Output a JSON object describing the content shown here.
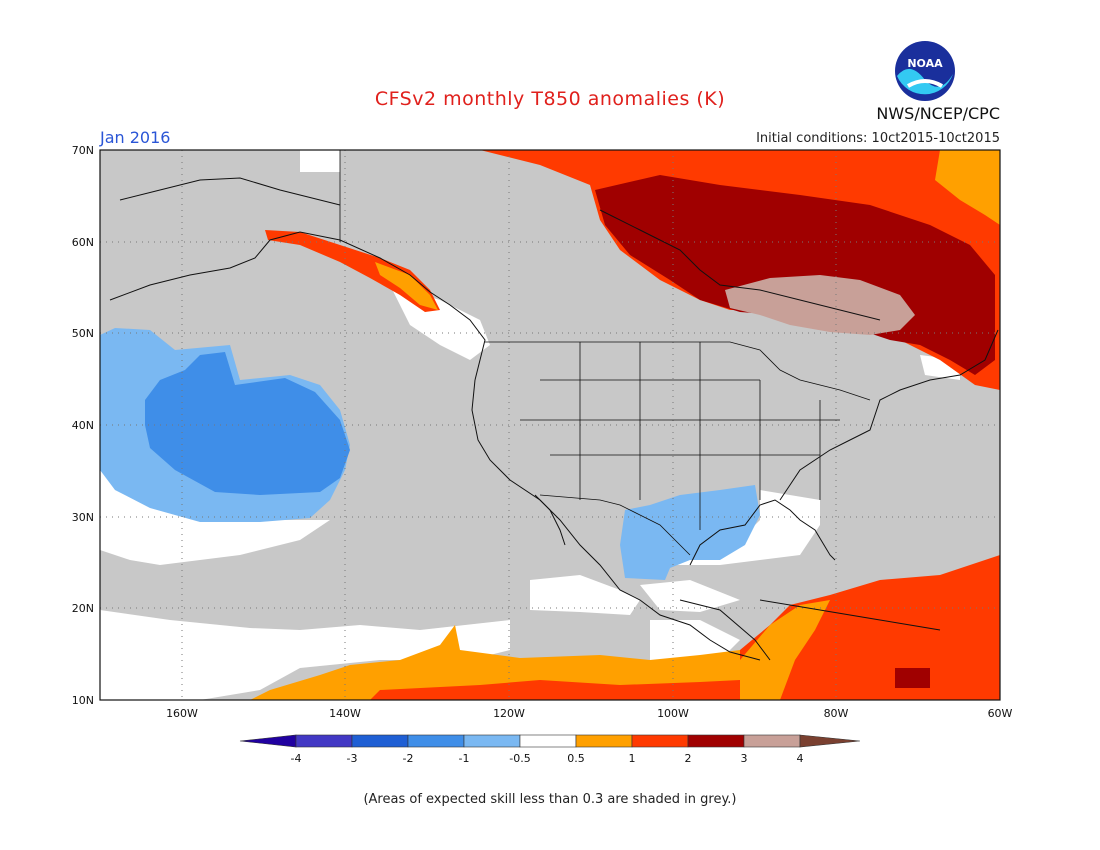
{
  "header": {
    "title": "CFSv2 monthly T850 anomalies (K)",
    "agency": "NWS/NCEP/CPC",
    "logo_text": "NOAA",
    "month": "Jan 2016",
    "initial_conditions": "Initial conditions: 10ct2015-10ct2015"
  },
  "map": {
    "lat_labels": [
      "70N",
      "60N",
      "50N",
      "40N",
      "30N",
      "20N",
      "10N"
    ],
    "lon_labels": [
      "160W",
      "140W",
      "120W",
      "100W",
      "80W",
      "60W"
    ]
  },
  "legend": {
    "ticks": [
      "-4",
      "-3",
      "-2",
      "-1",
      "-0.5",
      "0.5",
      "1",
      "2",
      "3",
      "4"
    ],
    "colors": {
      "lt_minus4": "#2000a0",
      "m4_m3": "#4238c4",
      "m3_m2": "#1f5fd4",
      "m2_m1": "#3f8ee8",
      "m1_m05": "#7ab8f2",
      "neutral": "#ffffff",
      "p05_1": "#ffa000",
      "p1_2": "#ff3a00",
      "p2_3": "#a00000",
      "p3_4": "#c8a098",
      "gt4": "#7a4030"
    },
    "skill_grey": "#c8c8c8"
  },
  "footnote": "(Areas of expected skill less than 0.3 are shaded in grey.)"
}
